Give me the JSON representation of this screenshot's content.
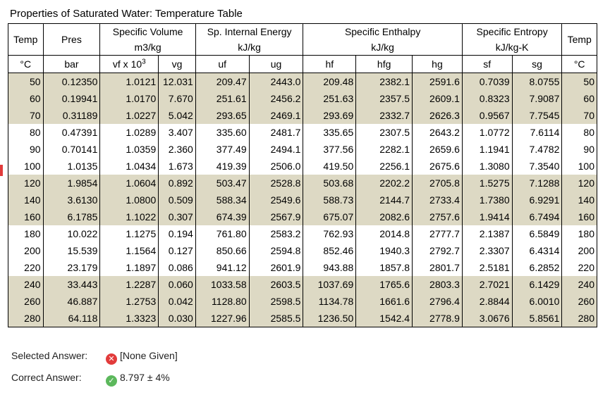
{
  "title": "Properties of Saturated Water: Temperature Table",
  "headers": {
    "temp": "Temp",
    "temp_unit": "°C",
    "pres": "Pres",
    "pres_unit": "bar",
    "spec_volume": "Specific Volume",
    "spec_volume_unit": "m3/kg",
    "vf_base": "vf x 10",
    "vf_exp": "3",
    "vg": "vg",
    "internal_energy": "Sp. Internal Energy",
    "internal_energy_unit": "kJ/kg",
    "uf": "uf",
    "ug": "ug",
    "enthalpy": "Specific Enthalpy",
    "enthalpy_unit": "kJ/kg",
    "hf": "hf",
    "hfg": "hfg",
    "hg": "hg",
    "entropy": "Specific Entropy",
    "entropy_unit": "kJ/kg-K",
    "sf": "sf",
    "sg": "sg",
    "temp_right": "Temp",
    "temp_right_unit": "°C"
  },
  "rows": [
    [
      "50",
      "0.12350",
      "1.0121",
      "12.031",
      "209.47",
      "2443.0",
      "209.48",
      "2382.1",
      "2591.6",
      "0.7039",
      "8.0755",
      "50"
    ],
    [
      "60",
      "0.19941",
      "1.0170",
      "7.670",
      "251.61",
      "2456.2",
      "251.63",
      "2357.5",
      "2609.1",
      "0.8323",
      "7.9087",
      "60"
    ],
    [
      "70",
      "0.31189",
      "1.0227",
      "5.042",
      "293.65",
      "2469.1",
      "293.69",
      "2332.7",
      "2626.3",
      "0.9567",
      "7.7545",
      "70"
    ],
    [
      "80",
      "0.47391",
      "1.0289",
      "3.407",
      "335.60",
      "2481.7",
      "335.65",
      "2307.5",
      "2643.2",
      "1.0772",
      "7.6114",
      "80"
    ],
    [
      "90",
      "0.70141",
      "1.0359",
      "2.360",
      "377.49",
      "2494.1",
      "377.56",
      "2282.1",
      "2659.6",
      "1.1941",
      "7.4782",
      "90"
    ],
    [
      "100",
      "1.0135",
      "1.0434",
      "1.673",
      "419.39",
      "2506.0",
      "419.50",
      "2256.1",
      "2675.6",
      "1.3080",
      "7.3540",
      "100"
    ],
    [
      "120",
      "1.9854",
      "1.0604",
      "0.892",
      "503.47",
      "2528.8",
      "503.68",
      "2202.2",
      "2705.8",
      "1.5275",
      "7.1288",
      "120"
    ],
    [
      "140",
      "3.6130",
      "1.0800",
      "0.509",
      "588.34",
      "2549.6",
      "588.73",
      "2144.7",
      "2733.4",
      "1.7380",
      "6.9291",
      "140"
    ],
    [
      "160",
      "6.1785",
      "1.1022",
      "0.307",
      "674.39",
      "2567.9",
      "675.07",
      "2082.6",
      "2757.6",
      "1.9414",
      "6.7494",
      "160"
    ],
    [
      "180",
      "10.022",
      "1.1275",
      "0.194",
      "761.80",
      "2583.2",
      "762.93",
      "2014.8",
      "2777.7",
      "2.1387",
      "6.5849",
      "180"
    ],
    [
      "200",
      "15.539",
      "1.1564",
      "0.127",
      "850.66",
      "2594.8",
      "852.46",
      "1940.3",
      "2792.7",
      "2.3307",
      "6.4314",
      "200"
    ],
    [
      "220",
      "23.179",
      "1.1897",
      "0.086",
      "941.12",
      "2601.9",
      "943.88",
      "1857.8",
      "2801.7",
      "2.5181",
      "6.2852",
      "220"
    ],
    [
      "240",
      "33.443",
      "1.2287",
      "0.060",
      "1033.58",
      "2603.5",
      "1037.69",
      "1765.6",
      "2803.3",
      "2.7021",
      "6.1429",
      "240"
    ],
    [
      "260",
      "46.887",
      "1.2753",
      "0.042",
      "1128.80",
      "2598.5",
      "1134.78",
      "1661.6",
      "2796.4",
      "2.8844",
      "6.0010",
      "260"
    ],
    [
      "280",
      "64.118",
      "1.3323",
      "0.030",
      "1227.96",
      "2585.5",
      "1236.50",
      "1542.4",
      "2778.9",
      "3.0676",
      "5.8561",
      "280"
    ]
  ],
  "shading": {
    "color": "#ddd9c4",
    "pattern": "groups of three rows alternate shaded / white, starting shaded"
  },
  "answers": {
    "selected_label": "Selected Answer:",
    "selected_value": "[None Given]",
    "selected_icon": "x-circle-icon",
    "correct_label": "Correct Answer:",
    "correct_value": "8.797 ± 4%",
    "correct_icon": "check-circle-icon",
    "incorrect_color": "#e23b3b",
    "correct_color": "#5cb85c"
  }
}
